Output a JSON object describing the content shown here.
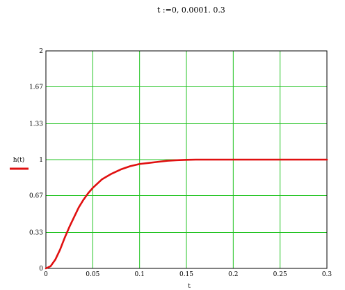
{
  "definition": "t :=0, 0.0001. 0.3",
  "chart_data": {
    "type": "line",
    "title": "",
    "xlabel": "t",
    "ylabel": "h(t)",
    "xlim": [
      0,
      0.3
    ],
    "ylim": [
      0,
      2
    ],
    "xticks": [
      0,
      0.05,
      0.1,
      0.15,
      0.2,
      0.25,
      0.3
    ],
    "xtick_labels": [
      "0",
      "0.05",
      "0.1",
      "0.15",
      "0.2",
      "0.25",
      "0.3"
    ],
    "yticks": [
      0,
      0.33,
      0.67,
      1,
      1.33,
      1.67,
      2
    ],
    "ytick_labels": [
      "0",
      "0.33",
      "0.67",
      "1",
      "1.33",
      "1.67",
      "2"
    ],
    "grid": true,
    "series": [
      {
        "name": "h(t)",
        "color": "#e01010",
        "x": [
          0,
          0.005,
          0.01,
          0.015,
          0.02,
          0.025,
          0.03,
          0.035,
          0.04,
          0.045,
          0.05,
          0.06,
          0.07,
          0.08,
          0.09,
          0.1,
          0.11,
          0.12,
          0.13,
          0.14,
          0.15,
          0.16,
          0.18,
          0.2,
          0.25,
          0.3
        ],
        "y": [
          0,
          0.02,
          0.08,
          0.17,
          0.28,
          0.38,
          0.47,
          0.56,
          0.63,
          0.69,
          0.74,
          0.82,
          0.87,
          0.91,
          0.94,
          0.96,
          0.97,
          0.98,
          0.99,
          0.995,
          0.998,
          1.0,
          1.0,
          1.0,
          1.0,
          1.0
        ]
      }
    ]
  }
}
